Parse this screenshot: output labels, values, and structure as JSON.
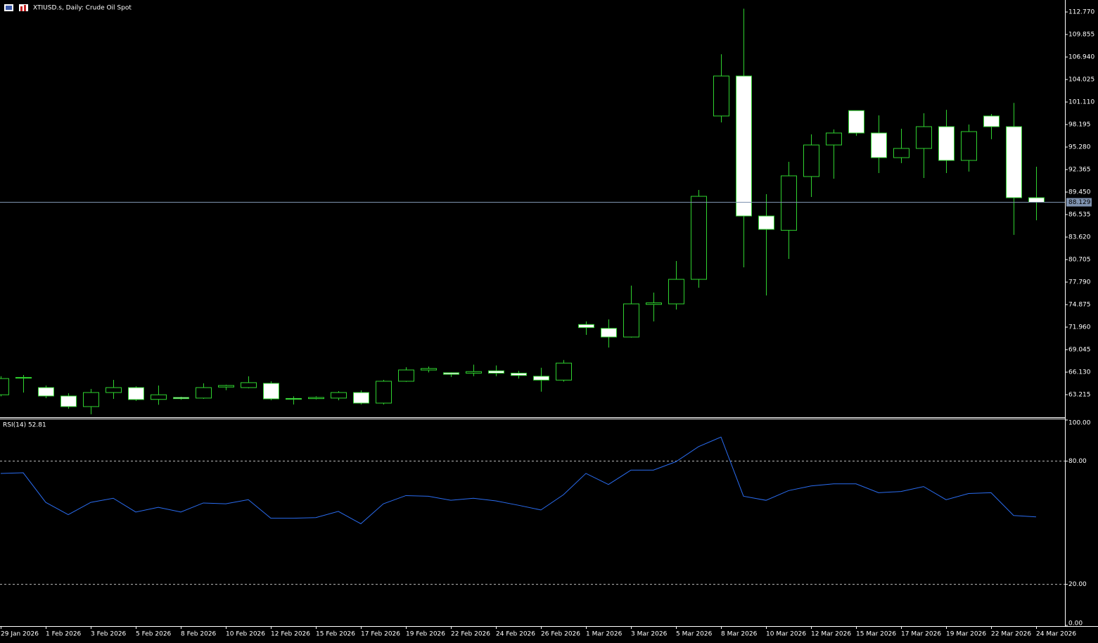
{
  "header": {
    "title": "XTIUSD.s, Daily:  Crude Oil Spot"
  },
  "chart_data": [
    {
      "type": "candlestick",
      "categories": [
        "29 Jan 2026",
        null,
        "1 Feb 2026",
        null,
        "3 Feb 2026",
        null,
        "5 Feb 2026",
        null,
        "8 Feb 2026",
        null,
        "10 Feb 2026",
        null,
        "12 Feb 2026",
        null,
        "15 Feb 2026",
        null,
        "17 Feb 2026",
        null,
        "19 Feb 2026",
        null,
        "22 Feb 2026",
        null,
        "24 Feb 2026",
        null,
        "26 Feb 2026",
        null,
        "1 Mar 2026",
        null,
        "3 Mar 2026",
        null,
        "5 Mar 2026",
        null,
        "8 Mar 2026",
        null,
        "10 Mar 2026",
        null,
        "12 Mar 2026",
        null,
        "15 Mar 2026",
        null,
        "17 Mar 2026",
        null,
        "19 Mar 2026",
        null,
        "22 Mar 2026",
        null,
        "24 Mar 2026"
      ],
      "open": [
        63.2,
        65.35,
        64.13,
        63.04,
        61.67,
        63.49,
        64.13,
        62.6,
        62.85,
        62.77,
        64.2,
        64.13,
        64.68,
        62.72,
        62.7,
        62.77,
        63.49,
        62.12,
        64.95,
        66.4,
        66.05,
        66.0,
        66.3,
        66.0,
        65.6,
        65.1,
        72.3,
        71.8,
        70.68,
        74.9,
        74.97,
        78.15,
        99.3,
        104.48,
        86.35,
        84.5,
        91.46,
        95.55,
        100.0,
        97.1,
        93.91,
        95.1,
        97.92,
        93.55,
        99.3,
        97.92,
        88.72
      ],
      "high": [
        65.6,
        65.77,
        64.4,
        63.4,
        63.95,
        65.13,
        64.3,
        64.4,
        62.95,
        64.68,
        64.5,
        65.59,
        64.95,
        63.0,
        63.0,
        63.67,
        63.77,
        65.13,
        66.77,
        66.86,
        66.1,
        67.1,
        67.0,
        66.3,
        66.7,
        67.7,
        72.7,
        72.96,
        77.33,
        76.43,
        80.52,
        89.72,
        107.3,
        113.2,
        89.18,
        93.37,
        96.92,
        97.56,
        100.0,
        99.38,
        97.65,
        99.65,
        100.1,
        98.2,
        99.56,
        101.0,
        92.73
      ],
      "low": [
        63.0,
        63.49,
        62.76,
        61.39,
        60.67,
        62.67,
        62.4,
        61.9,
        62.55,
        62.67,
        63.8,
        64.04,
        62.49,
        61.94,
        62.6,
        62.49,
        61.94,
        61.94,
        64.86,
        66.1,
        65.5,
        65.6,
        65.6,
        65.3,
        63.6,
        64.9,
        70.96,
        69.32,
        70.6,
        72.7,
        74.24,
        77.06,
        98.47,
        79.7,
        76.06,
        80.8,
        88.81,
        91.18,
        96.73,
        91.91,
        93.2,
        91.27,
        91.91,
        92.1,
        96.3,
        83.9,
        85.8
      ],
      "close": [
        65.3,
        65.45,
        63.04,
        61.67,
        63.49,
        64.13,
        62.58,
        63.2,
        62.7,
        64.13,
        64.4,
        64.77,
        62.67,
        62.62,
        62.85,
        63.49,
        62.12,
        64.95,
        66.41,
        66.6,
        65.85,
        66.2,
        66.0,
        65.7,
        65.1,
        67.3,
        71.9,
        70.68,
        74.97,
        75.1,
        78.15,
        88.9,
        104.48,
        86.35,
        84.62,
        91.55,
        95.55,
        97.1,
        97.1,
        93.91,
        95.1,
        97.92,
        93.55,
        97.28,
        97.92,
        88.72,
        88.129
      ],
      "up_color": "#000000",
      "down_color": "#ffffff",
      "wick_color": "#2fd22f",
      "current_price": 88.129,
      "current_line_color": "#7f93b0",
      "ylim": [
        60.39,
        114.14
      ],
      "yticks": [
        {
          "value": 112.77,
          "label": "112.770"
        },
        109.855,
        {
          "value": 106.94,
          "label": "106.940"
        },
        104.025,
        {
          "value": 101.11,
          "label": "101.110"
        },
        98.195,
        {
          "value": 95.28,
          "label": "95.280"
        },
        92.365,
        {
          "value": 89.45,
          "label": "89.450"
        },
        86.535,
        {
          "value": 83.62,
          "label": "83.620"
        },
        80.705,
        {
          "value": 77.79,
          "label": "77.790"
        },
        74.875,
        {
          "value": 71.96,
          "label": "71.960"
        },
        69.045,
        {
          "value": 66.13,
          "label": "66.130"
        },
        63.215
      ]
    },
    {
      "type": "line",
      "title": "RSI(14) 52.81",
      "color": "#2a6cf0",
      "values": [
        73.97,
        74.3,
        59.9,
        53.9,
        59.9,
        61.9,
        55.2,
        57.5,
        55.2,
        59.6,
        59.2,
        61.2,
        52.2,
        52.2,
        52.5,
        55.5,
        49.5,
        59.2,
        63.2,
        62.9,
        60.9,
        61.9,
        60.6,
        58.5,
        56.2,
        63.6,
        74.0,
        68.6,
        75.6,
        75.6,
        79.7,
        87.0,
        91.7,
        62.9,
        60.9,
        65.6,
        67.9,
        68.9,
        68.9,
        64.6,
        65.2,
        67.6,
        61.2,
        64.2,
        64.6,
        53.5,
        52.81
      ],
      "ylim": [
        0,
        100
      ],
      "yticks": [
        {
          "value": 100,
          "label": "100.00"
        },
        {
          "value": 80,
          "label": "80.00"
        },
        {
          "value": 20,
          "label": "20.00"
        },
        {
          "value": 0,
          "label": "0.00"
        }
      ]
    }
  ]
}
